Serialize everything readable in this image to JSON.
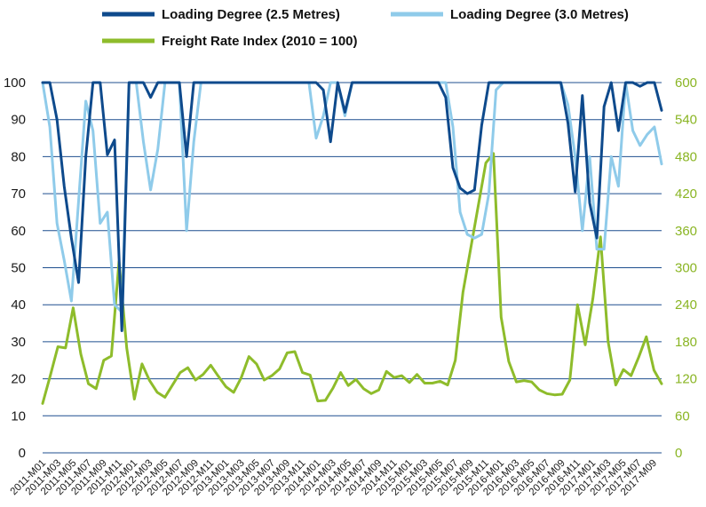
{
  "chart_data": {
    "type": "line",
    "title": "",
    "xlabel": "",
    "ylabel": "",
    "y2label": "",
    "ylim": [
      0,
      100
    ],
    "y2lim": [
      0,
      600
    ],
    "y_ticks": [
      "0",
      "10",
      "20",
      "30",
      "40",
      "50",
      "60",
      "70",
      "80",
      "90",
      "100"
    ],
    "y2_ticks": [
      "0",
      "60",
      "120",
      "180",
      "240",
      "300",
      "360",
      "420",
      "480",
      "540",
      "600"
    ],
    "grid": true,
    "legend_position": "top",
    "x_tick_labels": [
      "2011-M01",
      "2011-M03",
      "2011-M05",
      "2011-M07",
      "2011-M09",
      "2011-M11",
      "2012-M01",
      "2012-M03",
      "2012-M05",
      "2012-M07",
      "2012-M09",
      "2012-M11",
      "2013-M01",
      "2013-M03",
      "2013-M05",
      "2013-M07",
      "2013-M09",
      "2013-M11",
      "2014-M01",
      "2014-M03",
      "2014-M05",
      "2014-M07",
      "2014-M09",
      "2014-M11",
      "2015-M01",
      "2015-M03",
      "2015-M05",
      "2015-M07",
      "2015-M09",
      "2015-M11",
      "2016-M01",
      "2016-M03",
      "2016-M05",
      "2016-M07",
      "2016-M09",
      "2016-M11",
      "2017-M01",
      "2017-M03",
      "2017-M05",
      "2017-M07",
      "2017-M09"
    ],
    "series": [
      {
        "name": "Loading Degree (2.5 Metres)",
        "axis": "left",
        "color": "#0e4a8c",
        "values": [
          100,
          100,
          90,
          72,
          58,
          46,
          80,
          100,
          100,
          80.5,
          84.5,
          33,
          100,
          100,
          100,
          96,
          100,
          100,
          100,
          100,
          80,
          100,
          100,
          100,
          100,
          100,
          100,
          100,
          100,
          100,
          100,
          100,
          100,
          100,
          100,
          100,
          100,
          100,
          100,
          98,
          84,
          100,
          92,
          100,
          100,
          100,
          100,
          100,
          100,
          100,
          100,
          100,
          100,
          100,
          100,
          100,
          96,
          77,
          71.5,
          70,
          71,
          88.5,
          100,
          100,
          100,
          100,
          100,
          100,
          100,
          100,
          100,
          100,
          100,
          89,
          70.5,
          96.5,
          67.5,
          58,
          93.5,
          100,
          87,
          100,
          100,
          99,
          100,
          100,
          92.5
        ]
      },
      {
        "name": "Loading Degree (3.0 Metres)",
        "axis": "left",
        "color": "#8fcbea",
        "values": [
          100,
          88,
          62,
          52,
          41,
          68,
          95,
          87,
          62,
          65,
          40,
          38,
          100,
          100,
          84,
          71,
          82,
          100,
          100,
          100,
          60,
          84,
          100,
          100,
          100,
          100,
          100,
          100,
          100,
          100,
          100,
          100,
          100,
          100,
          100,
          100,
          100,
          100,
          85,
          91,
          100,
          100,
          91,
          100,
          100,
          100,
          100,
          100,
          100,
          100,
          100,
          100,
          100,
          100,
          100,
          100,
          100,
          88,
          65,
          59,
          58,
          59,
          70,
          98,
          100,
          100,
          100,
          100,
          100,
          100,
          100,
          100,
          100,
          94,
          80,
          60,
          80,
          55,
          55,
          80,
          72,
          100,
          87,
          83,
          86,
          88,
          78
        ]
      },
      {
        "name": "Freight Rate Index (2010 = 100)",
        "axis": "right",
        "color": "#8ebc2b",
        "values": [
          80,
          125,
          172,
          170,
          235,
          160,
          112,
          104,
          150,
          157,
          310,
          170,
          87,
          144,
          117,
          98,
          90,
          110,
          130,
          138,
          118,
          127,
          142,
          124,
          107,
          98,
          122,
          156,
          144,
          118,
          125,
          136,
          162,
          164,
          130,
          126,
          84,
          85,
          105,
          130,
          109,
          119,
          104,
          96,
          102,
          132,
          122,
          125,
          114,
          127,
          113,
          113,
          116,
          110,
          150,
          260,
          330,
          400,
          470,
          485,
          220,
          148,
          115,
          117,
          115,
          102,
          96,
          94,
          95,
          118,
          240,
          175,
          250,
          350,
          180,
          110,
          135,
          125,
          155,
          188,
          134,
          112
        ]
      }
    ]
  }
}
